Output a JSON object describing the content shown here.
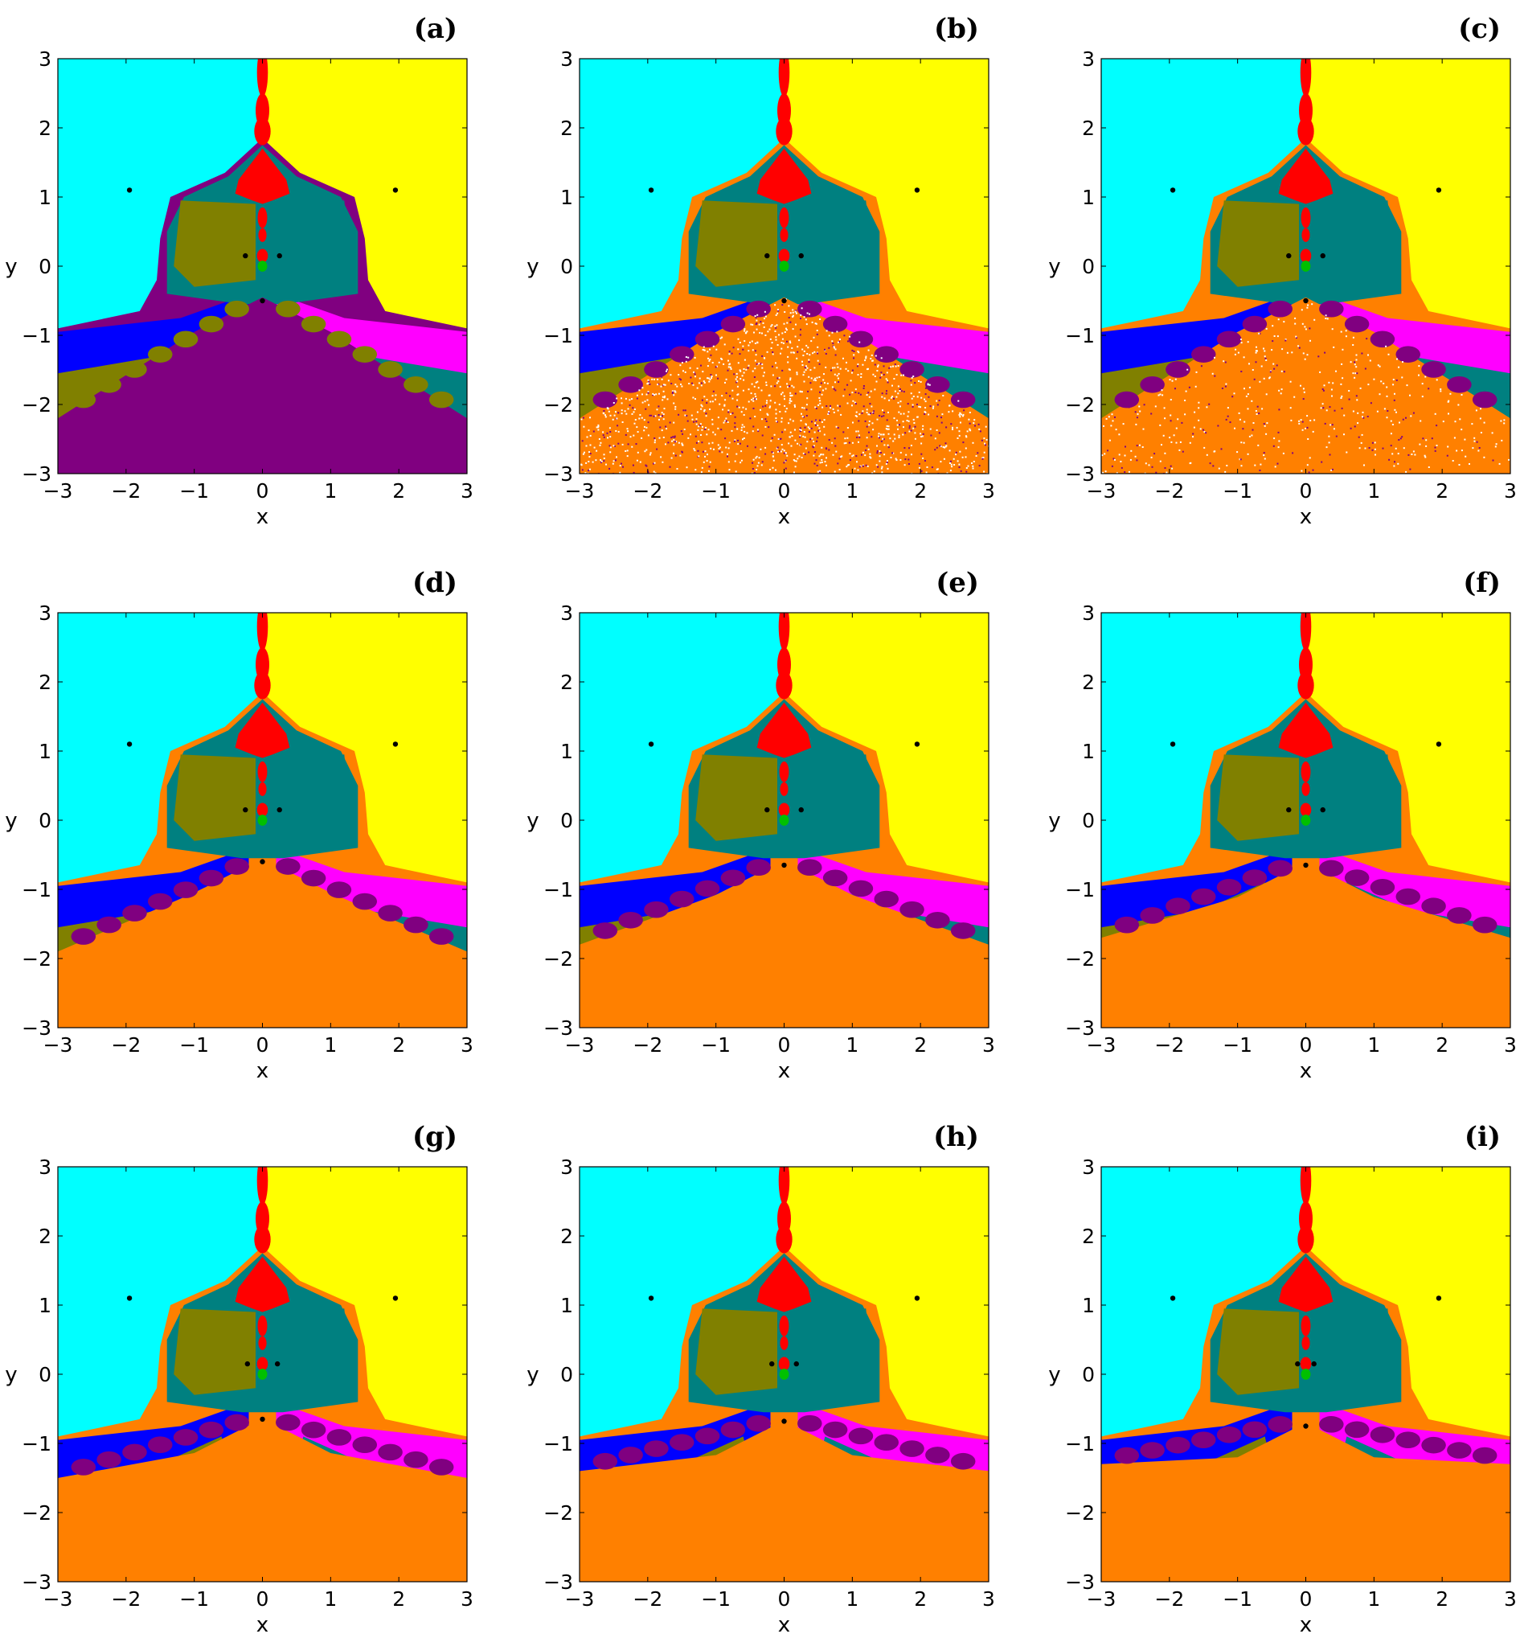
{
  "colors": {
    "cyan": "#00ffff",
    "yellow": "#ffff00",
    "red": "#ff0000",
    "olive": "#808000",
    "teal": "#008080",
    "blue": "#0000ff",
    "magenta": "#ff00ff",
    "purple": "#800080",
    "orange": "#ff8000",
    "green": "#00c000",
    "point": "#000000"
  },
  "chart_data": [
    {
      "type": "heatmap",
      "panel_label": "(a)",
      "bottom_fill": "purple",
      "speckle": "none",
      "xlabel": "x",
      "ylabel": "y",
      "xlim": [
        -3,
        3
      ],
      "ylim": [
        -3,
        3
      ],
      "xticks": [
        "−3",
        "−2",
        "−1",
        "0",
        "1",
        "2",
        "3"
      ],
      "yticks": [
        "−3",
        "−2",
        "−1",
        "0",
        "1",
        "2",
        "3"
      ],
      "points": [
        [
          -1.95,
          1.1
        ],
        [
          1.95,
          1.1
        ],
        [
          -0.25,
          0.15
        ],
        [
          0.25,
          0.15
        ],
        [
          0,
          -0.5
        ]
      ]
    },
    {
      "type": "heatmap",
      "panel_label": "(b)",
      "bottom_fill": "orange",
      "speckle": "heavy",
      "xlabel": "x",
      "ylabel": "y",
      "xlim": [
        -3,
        3
      ],
      "ylim": [
        -3,
        3
      ],
      "xticks": [
        "−3",
        "−2",
        "−1",
        "0",
        "1",
        "2",
        "3"
      ],
      "yticks": [
        "−3",
        "−2",
        "−1",
        "0",
        "1",
        "2",
        "3"
      ],
      "points": [
        [
          -1.95,
          1.1
        ],
        [
          1.95,
          1.1
        ],
        [
          -0.25,
          0.15
        ],
        [
          0.25,
          0.15
        ],
        [
          0,
          -0.5
        ]
      ]
    },
    {
      "type": "heatmap",
      "panel_label": "(c)",
      "bottom_fill": "orange",
      "speckle": "light",
      "xlabel": "x",
      "ylabel": "y",
      "xlim": [
        -3,
        3
      ],
      "ylim": [
        -3,
        3
      ],
      "xticks": [
        "−3",
        "−2",
        "−1",
        "0",
        "1",
        "2",
        "3"
      ],
      "yticks": [
        "−3",
        "−2",
        "−1",
        "0",
        "1",
        "2",
        "3"
      ],
      "points": [
        [
          -1.95,
          1.1
        ],
        [
          1.95,
          1.1
        ],
        [
          -0.25,
          0.15
        ],
        [
          0.25,
          0.15
        ],
        [
          0,
          -0.5
        ]
      ]
    },
    {
      "type": "heatmap",
      "panel_label": "(d)",
      "bottom_fill": "orange",
      "speckle": "none",
      "xlabel": "x",
      "ylabel": "y",
      "xlim": [
        -3,
        3
      ],
      "ylim": [
        -3,
        3
      ],
      "xticks": [
        "−3",
        "−2",
        "−1",
        "0",
        "1",
        "2",
        "3"
      ],
      "yticks": [
        "−3",
        "−2",
        "−1",
        "0",
        "1",
        "2",
        "3"
      ],
      "points": [
        [
          -1.95,
          1.1
        ],
        [
          1.95,
          1.1
        ],
        [
          -0.25,
          0.15
        ],
        [
          0.25,
          0.15
        ],
        [
          0,
          -0.6
        ]
      ]
    },
    {
      "type": "heatmap",
      "panel_label": "(e)",
      "bottom_fill": "orange",
      "speckle": "none",
      "xlabel": "x",
      "ylabel": "y",
      "xlim": [
        -3,
        3
      ],
      "ylim": [
        -3,
        3
      ],
      "xticks": [
        "−3",
        "−2",
        "−1",
        "0",
        "1",
        "2",
        "3"
      ],
      "yticks": [
        "−3",
        "−2",
        "−1",
        "0",
        "1",
        "2",
        "3"
      ],
      "points": [
        [
          -1.95,
          1.1
        ],
        [
          1.95,
          1.1
        ],
        [
          -0.25,
          0.15
        ],
        [
          0.25,
          0.15
        ],
        [
          0,
          -0.65
        ]
      ]
    },
    {
      "type": "heatmap",
      "panel_label": "(f)",
      "bottom_fill": "orange",
      "speckle": "none",
      "xlabel": "x",
      "ylabel": "y",
      "xlim": [
        -3,
        3
      ],
      "ylim": [
        -3,
        3
      ],
      "xticks": [
        "−3",
        "−2",
        "−1",
        "0",
        "1",
        "2",
        "3"
      ],
      "yticks": [
        "−3",
        "−2",
        "−1",
        "0",
        "1",
        "2",
        "3"
      ],
      "points": [
        [
          -1.95,
          1.1
        ],
        [
          1.95,
          1.1
        ],
        [
          -0.25,
          0.15
        ],
        [
          0.25,
          0.15
        ],
        [
          0,
          -0.65
        ]
      ]
    },
    {
      "type": "heatmap",
      "panel_label": "(g)",
      "bottom_fill": "orange",
      "speckle": "none",
      "xlabel": "x",
      "ylabel": "y",
      "xlim": [
        -3,
        3
      ],
      "ylim": [
        -3,
        3
      ],
      "xticks": [
        "−3",
        "−2",
        "−1",
        "0",
        "1",
        "2",
        "3"
      ],
      "yticks": [
        "−3",
        "−2",
        "−1",
        "0",
        "1",
        "2",
        "3"
      ],
      "points": [
        [
          -1.95,
          1.1
        ],
        [
          1.95,
          1.1
        ],
        [
          -0.22,
          0.15
        ],
        [
          0.22,
          0.15
        ],
        [
          0,
          -0.65
        ]
      ]
    },
    {
      "type": "heatmap",
      "panel_label": "(h)",
      "bottom_fill": "orange",
      "speckle": "none",
      "xlabel": "x",
      "ylabel": "y",
      "xlim": [
        -3,
        3
      ],
      "ylim": [
        -3,
        3
      ],
      "xticks": [
        "−3",
        "−2",
        "−1",
        "0",
        "1",
        "2",
        "3"
      ],
      "yticks": [
        "−3",
        "−2",
        "−1",
        "0",
        "1",
        "2",
        "3"
      ],
      "points": [
        [
          -1.95,
          1.1
        ],
        [
          1.95,
          1.1
        ],
        [
          -0.18,
          0.15
        ],
        [
          0.18,
          0.15
        ],
        [
          0,
          -0.68
        ]
      ]
    },
    {
      "type": "heatmap",
      "panel_label": "(i)",
      "bottom_fill": "orange",
      "speckle": "none",
      "xlabel": "x",
      "ylabel": "y",
      "xlim": [
        -3,
        3
      ],
      "ylim": [
        -3,
        3
      ],
      "xticks": [
        "−3",
        "−2",
        "−1",
        "0",
        "1",
        "2",
        "3"
      ],
      "yticks": [
        "−3",
        "−2",
        "−1",
        "0",
        "1",
        "2",
        "3"
      ],
      "points": [
        [
          -1.95,
          1.1
        ],
        [
          1.95,
          1.1
        ],
        [
          -0.12,
          0.15
        ],
        [
          0.12,
          0.15
        ],
        [
          0,
          -0.75
        ]
      ]
    }
  ]
}
